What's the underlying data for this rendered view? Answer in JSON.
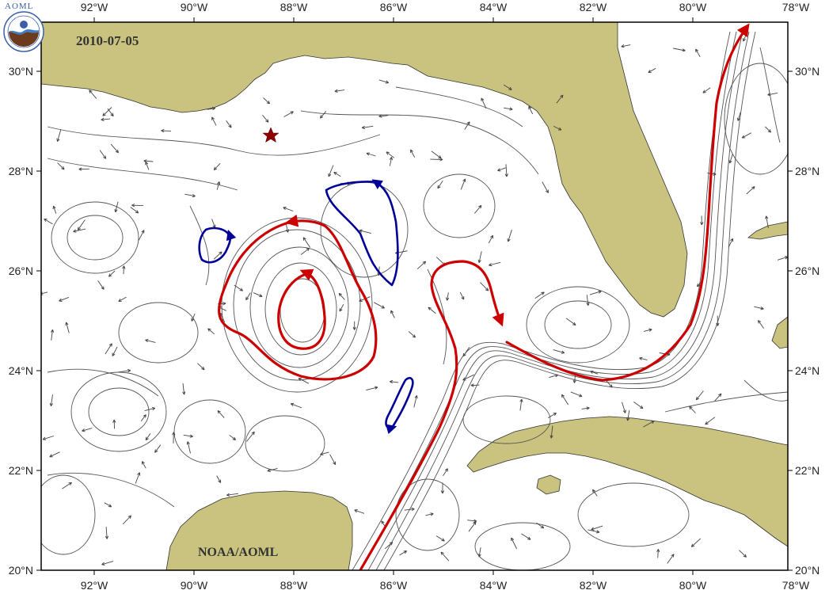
{
  "map": {
    "date": "2010-07-05",
    "credit": "NOAA/AOML",
    "logo_text": "AOML",
    "lon_labels": [
      "92°W",
      "90°W",
      "88°W",
      "86°W",
      "84°W",
      "82°W",
      "80°W",
      "78°W"
    ],
    "lat_labels": [
      "20°N",
      "22°N",
      "24°N",
      "26°N",
      "28°N",
      "30°N"
    ],
    "colors": {
      "land": "#c9c37f",
      "anticyclonic_feature": "#cc0000",
      "cyclonic_feature": "#000099",
      "streamline": "#555555",
      "marker": "#8b0000"
    },
    "marker": {
      "name": "star-marker",
      "lon": -88.4,
      "lat": 28.75
    }
  }
}
